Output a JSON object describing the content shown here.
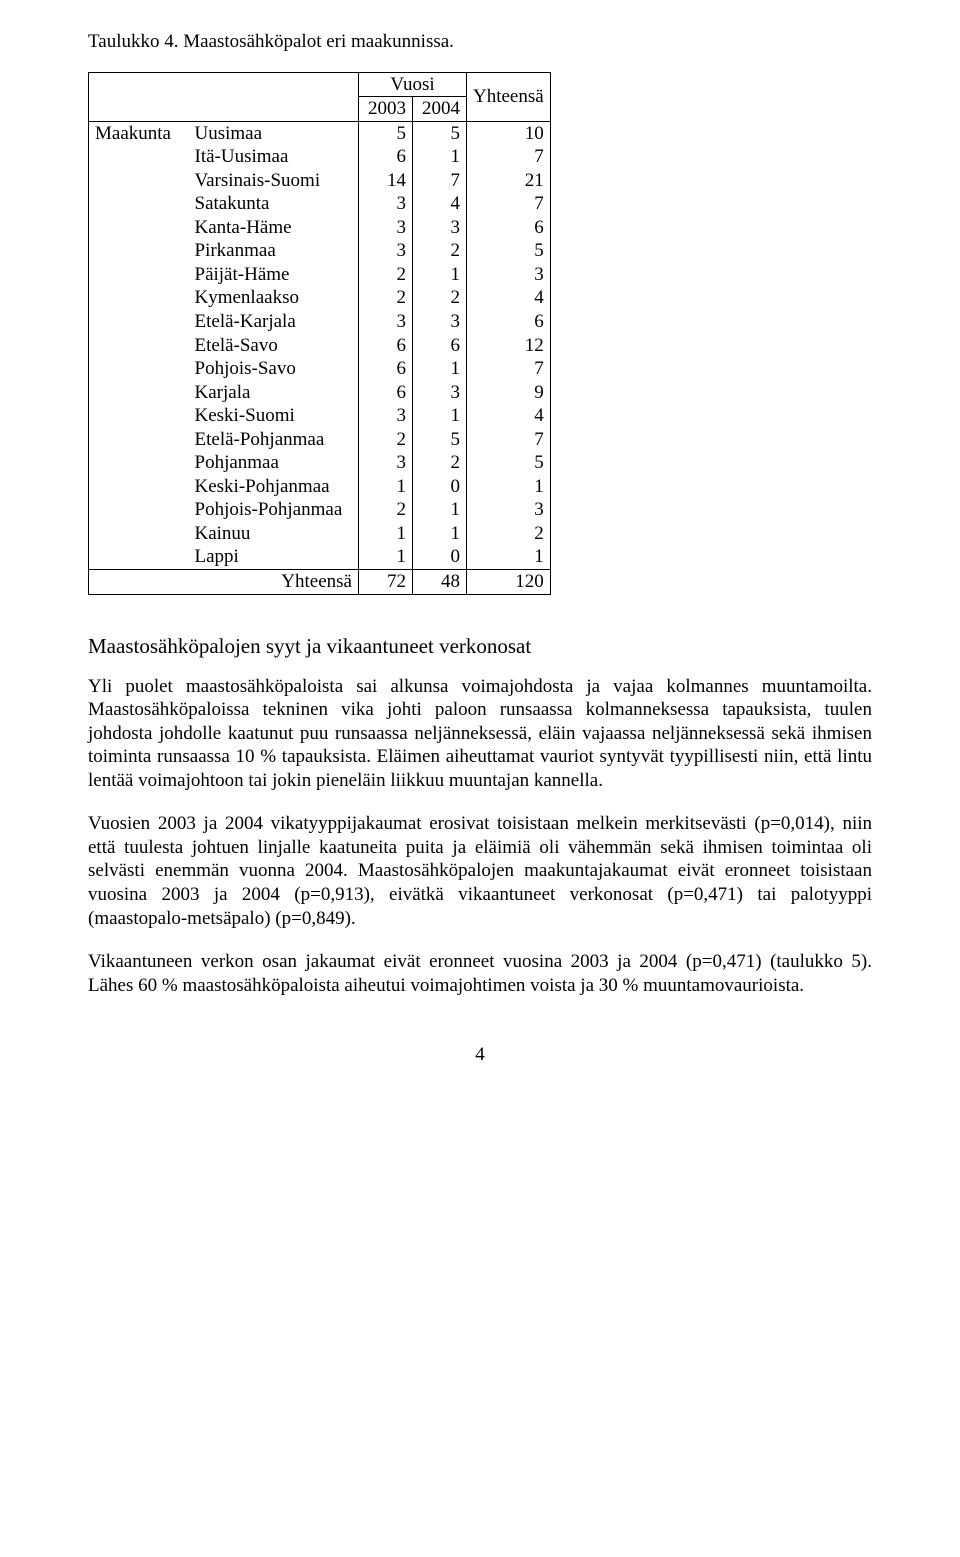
{
  "caption": "Taulukko 4. Maastosähköpalot eri maakunnissa.",
  "table": {
    "header": {
      "vuosi": "Vuosi",
      "y2003": "2003",
      "y2004": "2004",
      "yhteensa": "Yhteensä"
    },
    "group_label": "Maakunta",
    "rows": [
      {
        "label": "Uusimaa",
        "v2003": "5",
        "v2004": "5",
        "total": "10"
      },
      {
        "label": "Itä-Uusimaa",
        "v2003": "6",
        "v2004": "1",
        "total": "7"
      },
      {
        "label": "Varsinais-Suomi",
        "v2003": "14",
        "v2004": "7",
        "total": "21"
      },
      {
        "label": "Satakunta",
        "v2003": "3",
        "v2004": "4",
        "total": "7"
      },
      {
        "label": "Kanta-Häme",
        "v2003": "3",
        "v2004": "3",
        "total": "6"
      },
      {
        "label": "Pirkanmaa",
        "v2003": "3",
        "v2004": "2",
        "total": "5"
      },
      {
        "label": "Päijät-Häme",
        "v2003": "2",
        "v2004": "1",
        "total": "3"
      },
      {
        "label": "Kymenlaakso",
        "v2003": "2",
        "v2004": "2",
        "total": "4"
      },
      {
        "label": "Etelä-Karjala",
        "v2003": "3",
        "v2004": "3",
        "total": "6"
      },
      {
        "label": "Etelä-Savo",
        "v2003": "6",
        "v2004": "6",
        "total": "12"
      },
      {
        "label": "Pohjois-Savo",
        "v2003": "6",
        "v2004": "1",
        "total": "7"
      },
      {
        "label": "Karjala",
        "v2003": "6",
        "v2004": "3",
        "total": "9"
      },
      {
        "label": "Keski-Suomi",
        "v2003": "3",
        "v2004": "1",
        "total": "4"
      },
      {
        "label": "Etelä-Pohjanmaa",
        "v2003": "2",
        "v2004": "5",
        "total": "7"
      },
      {
        "label": "Pohjanmaa",
        "v2003": "3",
        "v2004": "2",
        "total": "5"
      },
      {
        "label": "Keski-Pohjanmaa",
        "v2003": "1",
        "v2004": "0",
        "total": "1"
      },
      {
        "label": "Pohjois-Pohjanmaa",
        "v2003": "2",
        "v2004": "1",
        "total": "3"
      },
      {
        "label": "Kainuu",
        "v2003": "1",
        "v2004": "1",
        "total": "2"
      },
      {
        "label": "Lappi",
        "v2003": "1",
        "v2004": "0",
        "total": "1"
      }
    ],
    "footer": {
      "label": "Yhteensä",
      "v2003": "72",
      "v2004": "48",
      "total": "120"
    }
  },
  "section_heading": "Maastosähköpalojen syyt ja vikaantuneet verkonosat",
  "para1": "Yli puolet maastosähköpaloista sai alkunsa voimajohdosta ja vajaa kolmannes muuntamoilta. Maastosähköpaloissa tekninen vika johti paloon runsaassa kolmanneksessa tapauksista, tuulen johdosta johdolle kaatunut puu runsaassa neljänneksessä, eläin vajaassa neljänneksessä sekä ihmisen toiminta runsaassa 10 % tapauksista. Eläimen aiheuttamat vauriot syntyvät tyypillisesti niin, että lintu lentää voimajohtoon tai jokin pieneläin liikkuu muuntajan kannella.",
  "para2": "Vuosien 2003 ja 2004 vikatyyppijakaumat erosivat toisistaan melkein merkitsevästi (p=0,014), niin että tuulesta johtuen linjalle kaatuneita puita ja eläimiä oli vähemmän sekä ihmisen toimintaa oli selvästi enemmän vuonna 2004. Maastosähköpalojen maakuntajakaumat eivät eronneet toisistaan vuosina 2003 ja 2004 (p=0,913), eivätkä vikaantuneet verkonosat (p=0,471) tai palotyyppi (maastopalo-metsäpalo) (p=0,849).",
  "para3": "Vikaantuneen verkon osan jakaumat eivät eronneet vuosina 2003 ja 2004 (p=0,471) (taulukko 5). Lähes 60 % maastosähköpaloista aiheutui voimajohtimen voista ja 30 % muuntamovaurioista.",
  "page_number": "4"
}
